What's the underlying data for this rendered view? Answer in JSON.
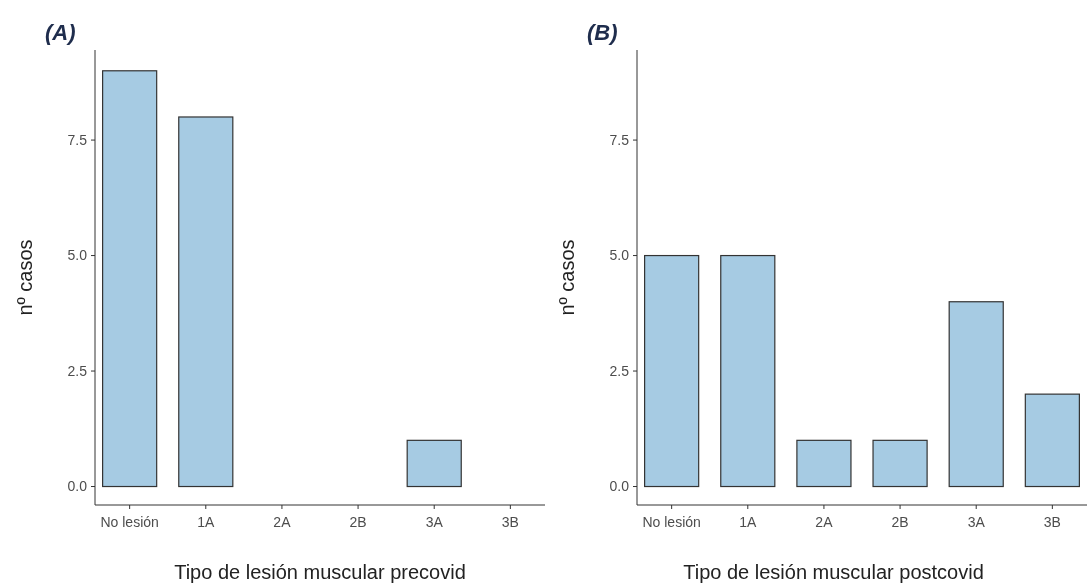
{
  "chart_data": [
    {
      "type": "bar",
      "title": "(A)",
      "xlabel": "Tipo de lesión muscular precovid",
      "ylabel": "nº casos",
      "categories": [
        "No lesión",
        "1A",
        "2A",
        "2B",
        "3A",
        "3B"
      ],
      "values": [
        9,
        8,
        0,
        0,
        1,
        0
      ],
      "color": "#a6cbe3",
      "ylim": [
        -0.4,
        9.45
      ],
      "yticks": [
        {
          "value": 0,
          "label": "0.0"
        },
        {
          "value": 2.5,
          "label": "2.5"
        },
        {
          "value": 5,
          "label": "5.0"
        },
        {
          "value": 7.5,
          "label": "7.5"
        }
      ],
      "grid": false
    },
    {
      "type": "bar",
      "title": "(B)",
      "xlabel": "Tipo de lesión muscular postcovid",
      "ylabel": "nº casos",
      "categories": [
        "No lesión",
        "1A",
        "2A",
        "2B",
        "3A",
        "3B"
      ],
      "values": [
        5,
        5,
        1,
        1,
        4,
        2
      ],
      "color": "#a6cbe3",
      "ylim": [
        -0.4,
        9.45
      ],
      "yticks": [
        {
          "value": 0,
          "label": "0.0"
        },
        {
          "value": 2.5,
          "label": "2.5"
        },
        {
          "value": 5,
          "label": "5.0"
        },
        {
          "value": 7.5,
          "label": "7.5"
        }
      ],
      "grid": false
    }
  ]
}
